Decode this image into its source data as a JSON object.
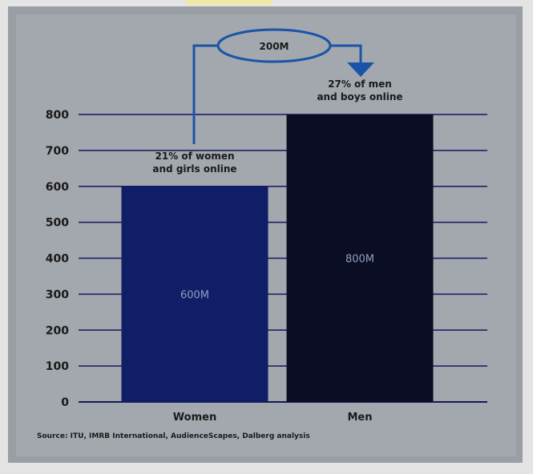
{
  "chart_data": {
    "type": "bar",
    "categories": [
      "Women",
      "Men"
    ],
    "values": [
      600,
      800
    ],
    "ylim": [
      0,
      800
    ],
    "yticks": [
      0,
      100,
      200,
      300,
      400,
      500,
      600,
      700,
      800
    ],
    "bar_labels": [
      "600M",
      "800M"
    ],
    "annotations": [
      [
        "21% of women",
        "and girls online"
      ],
      [
        "27% of men",
        "and boys online"
      ]
    ],
    "difference_label": "200M",
    "colors": {
      "women": "#0f1e66",
      "men": "#0b0d24",
      "gridline": "#141a5a",
      "arrow": "#1a54a8"
    },
    "grid": true,
    "source": "Source: ITU, IMRB International, AudienceScapes, Dalberg analysis"
  }
}
